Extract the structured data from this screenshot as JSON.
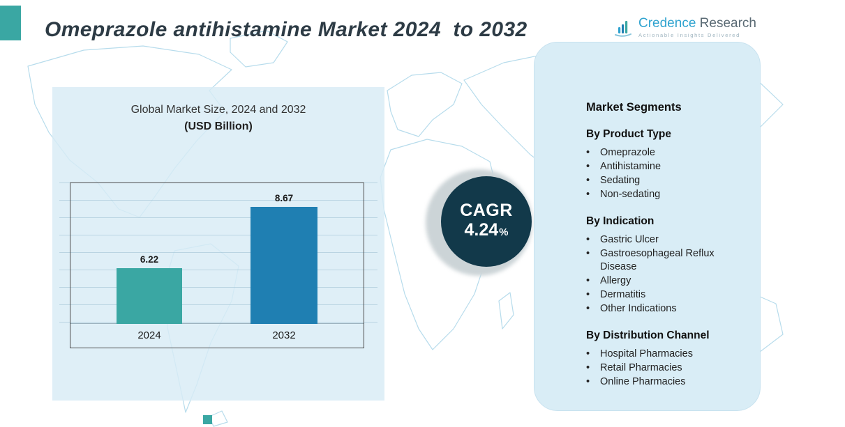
{
  "page": {
    "title": "Omeprazole antihistamine Market 2024  to 2032"
  },
  "logo": {
    "brand_primary": "Credence",
    "brand_secondary": "Research",
    "tagline": "Actionable Insights Delivered"
  },
  "chart_data": {
    "type": "bar",
    "title": "Global Market Size, 2024 and 2032",
    "subtitle": "(USD Billion)",
    "categories": [
      "2024",
      "2032"
    ],
    "values": [
      6.22,
      8.67
    ],
    "data_labels": [
      "6.22",
      "8.67"
    ],
    "bar_colors": [
      "#3aa7a3",
      "#1f7fb2"
    ],
    "ylim": [
      4,
      9.6
    ],
    "grid": true,
    "legend": false,
    "xlabel": "",
    "ylabel": ""
  },
  "cagr": {
    "label": "CAGR",
    "value": "4.24",
    "percent_sign": "%"
  },
  "segments_panel": {
    "title": "Market Segments",
    "sections": [
      {
        "heading": "By Product Type",
        "items": [
          "Omeprazole",
          "Antihistamine",
          "Sedating",
          "Non-sedating"
        ]
      },
      {
        "heading": "By Indication",
        "items": [
          "Gastric Ulcer",
          "Gastroesophageal Reflux Disease",
          "Allergy",
          "Dermatitis",
          "Other Indications"
        ]
      },
      {
        "heading": "By Distribution Channel",
        "items": [
          "Hospital Pharmacies",
          "Retail Pharmacies",
          "Online Pharmacies"
        ]
      }
    ]
  },
  "colors": {
    "accent_teal": "#3aa7a3",
    "accent_blue": "#1f7fb2",
    "cagr_circle": "#12394a",
    "panel_bg": "#d9edf6",
    "map_line": "#b7dcec"
  }
}
